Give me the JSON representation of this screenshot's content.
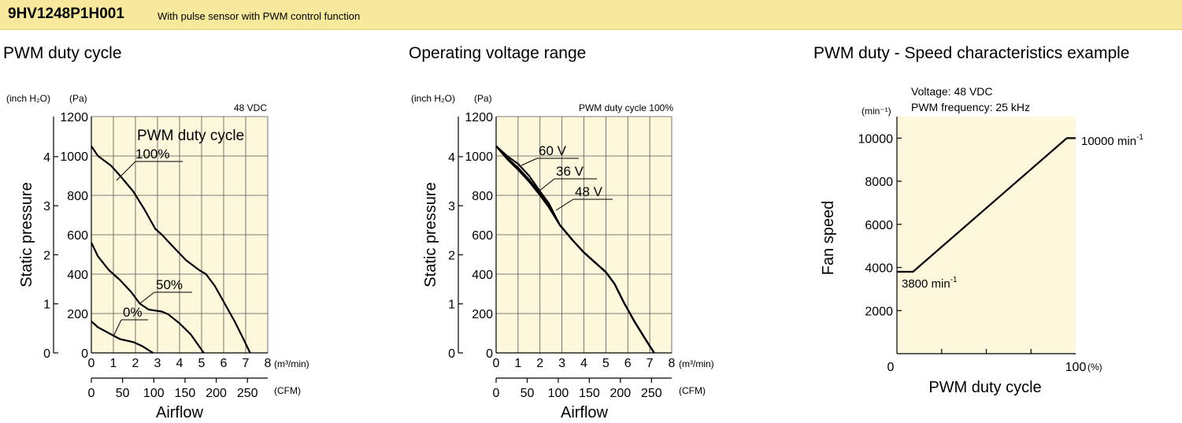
{
  "header": {
    "model": "9HV1248P1H001",
    "description": "With pulse sensor with PWM control function",
    "background": "#f7e99b"
  },
  "plot_background": "#fdf7dc",
  "chart_data": [
    {
      "type": "line",
      "title": "PWM duty cycle",
      "condition": "48 VDC",
      "legend_title": "PWM duty cycle",
      "ylabel": "Static pressure",
      "y_unit_left": "(inch H₂O)",
      "y_unit_right": "(Pa)",
      "xlabel": "Airflow",
      "x_unit_top": "(m³/min)",
      "x_unit_bottom": "(CFM)",
      "xlim": [
        0,
        8
      ],
      "ylim": [
        0,
        1200
      ],
      "x_ticks": [
        "0",
        "1",
        "2",
        "3",
        "4",
        "5",
        "6",
        "7",
        "8"
      ],
      "y_ticks": [
        "0",
        "200",
        "400",
        "600",
        "800",
        "1000",
        "1200"
      ],
      "y_ticks_inch": [
        "0",
        "1",
        "2",
        "3",
        "4"
      ],
      "cfm_ticks": [
        "0",
        "50",
        "100",
        "150",
        "200",
        "250"
      ],
      "grid": true,
      "series": [
        {
          "name": "100%",
          "x": [
            0,
            0.3,
            0.9,
            1.3,
            1.9,
            2.4,
            2.9,
            3.2,
            3.7,
            4.3,
            4.9,
            5.2,
            5.6,
            6.0,
            6.5,
            6.9,
            7.2
          ],
          "y": [
            1050,
            1000,
            950,
            900,
            820,
            730,
            630,
            600,
            540,
            470,
            420,
            400,
            340,
            260,
            160,
            70,
            0
          ]
        },
        {
          "name": "50%",
          "x": [
            0,
            0.3,
            0.8,
            1.3,
            1.8,
            2.2,
            2.6,
            2.9,
            3.2,
            3.5,
            4.0,
            4.5,
            5.1
          ],
          "y": [
            560,
            490,
            420,
            370,
            310,
            250,
            220,
            215,
            210,
            195,
            150,
            95,
            0
          ]
        },
        {
          "name": "0%",
          "x": [
            0,
            0.3,
            0.8,
            1.3,
            1.9,
            2.3,
            2.8
          ],
          "y": [
            160,
            130,
            100,
            70,
            55,
            35,
            0
          ]
        }
      ]
    },
    {
      "type": "line",
      "title": "Operating voltage range",
      "condition": "PWM duty cycle 100%",
      "ylabel": "Static pressure",
      "y_unit_left": "(inch H₂O)",
      "y_unit_right": "(Pa)",
      "xlabel": "Airflow",
      "x_unit_top": "(m³/min)",
      "x_unit_bottom": "(CFM)",
      "xlim": [
        0,
        8
      ],
      "ylim": [
        0,
        1200
      ],
      "x_ticks": [
        "0",
        "1",
        "2",
        "3",
        "4",
        "5",
        "6",
        "7",
        "8"
      ],
      "y_ticks": [
        "0",
        "200",
        "400",
        "600",
        "800",
        "1000",
        "1200"
      ],
      "y_ticks_inch": [
        "0",
        "1",
        "2",
        "3",
        "4"
      ],
      "cfm_ticks": [
        "0",
        "50",
        "100",
        "150",
        "200",
        "250"
      ],
      "grid": true,
      "series": [
        {
          "name": "60 V",
          "x": [
            0,
            0.5,
            1.0,
            1.5,
            2.0,
            2.4,
            2.9,
            3.5,
            4.0,
            4.5,
            5.0,
            5.4,
            5.8,
            6.3,
            6.8,
            7.2
          ],
          "y": [
            1050,
            1000,
            960,
            900,
            820,
            760,
            650,
            570,
            510,
            460,
            410,
            350,
            260,
            160,
            70,
            0
          ]
        },
        {
          "name": "36 V",
          "x": [
            0,
            0.5,
            1.0,
            1.5,
            2.0,
            2.4,
            2.9,
            3.5,
            4.0,
            4.5,
            5.0,
            5.4,
            5.8,
            6.3,
            6.8,
            7.2
          ],
          "y": [
            1050,
            990,
            940,
            880,
            810,
            750,
            650,
            570,
            510,
            460,
            410,
            350,
            260,
            160,
            70,
            0
          ]
        },
        {
          "name": "48 V",
          "x": [
            0,
            0.5,
            1.0,
            1.5,
            2.0,
            2.4,
            2.9,
            3.5,
            4.0,
            4.5,
            5.0,
            5.4,
            5.8,
            6.3,
            6.8,
            7.2
          ],
          "y": [
            1050,
            985,
            930,
            870,
            800,
            740,
            650,
            570,
            510,
            460,
            410,
            350,
            260,
            160,
            70,
            0
          ]
        }
      ]
    },
    {
      "type": "line",
      "title": "PWM duty - Speed characteristics example",
      "notes": [
        "Voltage: 48 VDC",
        "PWM frequency: 25 kHz"
      ],
      "ylabel": "Fan speed",
      "y_unit": "(min⁻¹)",
      "xlabel": "PWM duty cycle",
      "x_unit": "(%)",
      "xlim": [
        0,
        100
      ],
      "ylim": [
        0,
        11000
      ],
      "x_ticks": [
        "0",
        "100"
      ],
      "y_ticks": [
        "2000",
        "4000",
        "6000",
        "8000",
        "10000"
      ],
      "grid": false,
      "series": [
        {
          "x": [
            0,
            9,
            95,
            100
          ],
          "y": [
            3800,
            3800,
            10000,
            10000
          ]
        }
      ],
      "annotations": [
        {
          "text": "3800 min",
          "sup": "-1"
        },
        {
          "text": "10000 min",
          "sup": "-1"
        }
      ]
    }
  ]
}
